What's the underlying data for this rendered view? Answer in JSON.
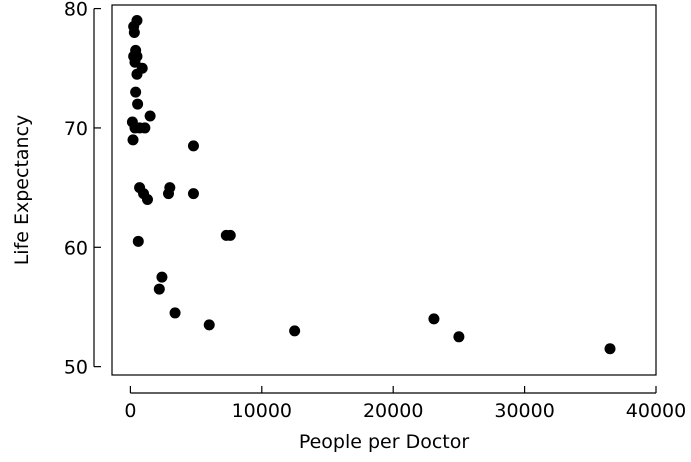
{
  "chart_data": {
    "type": "scatter",
    "title": "",
    "xlabel": "People per Doctor",
    "ylabel": "Life Expectancy",
    "xlim": [
      -1400,
      40000
    ],
    "ylim": [
      49.3,
      80.3
    ],
    "xticks": [
      0,
      10000,
      20000,
      30000,
      40000
    ],
    "yticks": [
      50,
      60,
      70,
      80
    ],
    "grid": false,
    "point_color": "#000000",
    "points": [
      {
        "x": 500,
        "y": 79.0
      },
      {
        "x": 250,
        "y": 78.5
      },
      {
        "x": 300,
        "y": 78.0
      },
      {
        "x": 400,
        "y": 76.5
      },
      {
        "x": 250,
        "y": 76.0
      },
      {
        "x": 500,
        "y": 76.0
      },
      {
        "x": 350,
        "y": 75.5
      },
      {
        "x": 900,
        "y": 75.0
      },
      {
        "x": 500,
        "y": 74.5
      },
      {
        "x": 400,
        "y": 73.0
      },
      {
        "x": 550,
        "y": 72.0
      },
      {
        "x": 1500,
        "y": 71.0
      },
      {
        "x": 150,
        "y": 70.5
      },
      {
        "x": 350,
        "y": 70.0
      },
      {
        "x": 700,
        "y": 70.0
      },
      {
        "x": 1100,
        "y": 70.0
      },
      {
        "x": 200,
        "y": 69.0
      },
      {
        "x": 4800,
        "y": 68.5
      },
      {
        "x": 700,
        "y": 65.0
      },
      {
        "x": 3000,
        "y": 65.0
      },
      {
        "x": 2900,
        "y": 64.5
      },
      {
        "x": 1000,
        "y": 64.5
      },
      {
        "x": 4800,
        "y": 64.5
      },
      {
        "x": 1300,
        "y": 64.0
      },
      {
        "x": 7300,
        "y": 61.0
      },
      {
        "x": 7600,
        "y": 61.0
      },
      {
        "x": 600,
        "y": 60.5
      },
      {
        "x": 2400,
        "y": 57.5
      },
      {
        "x": 2200,
        "y": 56.5
      },
      {
        "x": 3400,
        "y": 54.5
      },
      {
        "x": 6000,
        "y": 53.5
      },
      {
        "x": 12500,
        "y": 53.0
      },
      {
        "x": 23100,
        "y": 54.0
      },
      {
        "x": 25000,
        "y": 52.5
      },
      {
        "x": 36500,
        "y": 51.5
      }
    ]
  }
}
